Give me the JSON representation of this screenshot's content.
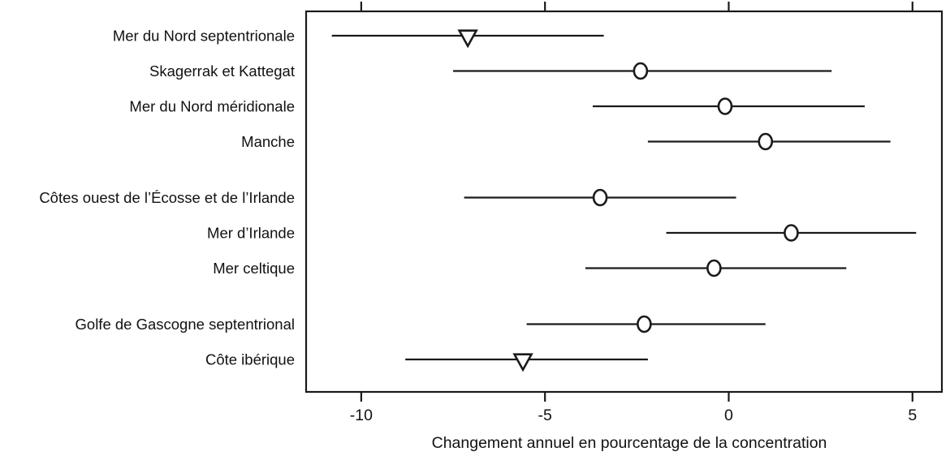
{
  "chart_data": {
    "type": "scatter",
    "subtype": "dot-and-interval (forest plot)",
    "title": "",
    "xlabel": "Changement annuel en pourcentage de la concentration",
    "ylabel": "",
    "x_ticks": [
      -10,
      -5,
      0,
      5
    ],
    "xlim": [
      -11.5,
      5.8
    ],
    "grid": "off",
    "legend": "none",
    "marker_shapes": {
      "circle": "open circle marker",
      "triangle-down": "open downward triangle marker"
    },
    "colors": {
      "stroke": "#1a1a1a",
      "marker_fill": "#ffffff",
      "background": "#ffffff"
    },
    "series": [
      {
        "label": "Mer du Nord septentrionale",
        "value": -7.1,
        "ci_low": -10.8,
        "ci_high": -3.4,
        "marker": "triangle-down",
        "group": 0
      },
      {
        "label": "Skagerrak et Kattegat",
        "value": -2.4,
        "ci_low": -7.5,
        "ci_high": 2.8,
        "marker": "circle",
        "group": 0
      },
      {
        "label": "Mer du Nord méridionale",
        "value": -0.1,
        "ci_low": -3.7,
        "ci_high": 3.7,
        "marker": "circle",
        "group": 0
      },
      {
        "label": "Manche",
        "value": 1.0,
        "ci_low": -2.2,
        "ci_high": 4.4,
        "marker": "circle",
        "group": 0
      },
      {
        "label": "Côtes ouest de l’Écosse et de l’Irlande",
        "value": -3.5,
        "ci_low": -7.2,
        "ci_high": 0.2,
        "marker": "circle",
        "group": 1
      },
      {
        "label": "Mer d’Irlande",
        "value": 1.7,
        "ci_low": -1.7,
        "ci_high": 5.1,
        "marker": "circle",
        "group": 1
      },
      {
        "label": "Mer celtique",
        "value": -0.4,
        "ci_low": -3.9,
        "ci_high": 3.2,
        "marker": "circle",
        "group": 1
      },
      {
        "label": "Golfe de Gascogne septentrional",
        "value": -2.3,
        "ci_low": -5.5,
        "ci_high": 1.0,
        "marker": "circle",
        "group": 2
      },
      {
        "label": "Côte ibérique",
        "value": -5.6,
        "ci_low": -8.8,
        "ci_high": -2.2,
        "marker": "triangle-down",
        "group": 2
      }
    ]
  }
}
